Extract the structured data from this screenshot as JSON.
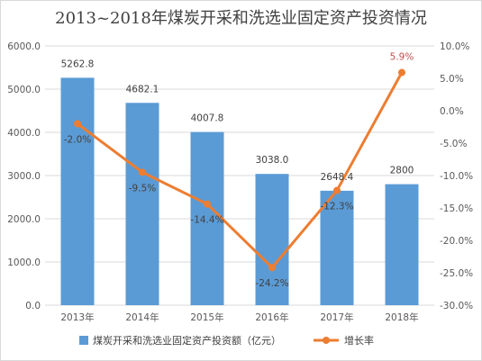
{
  "chart_data": {
    "type": "bar",
    "title": "2013~2018年煤炭开采和洗选业固定资产投资情况",
    "categories": [
      "2013年",
      "2014年",
      "2015年",
      "2016年",
      "2017年",
      "2018年"
    ],
    "series": [
      {
        "name": "煤炭开采和洗选业固定资产投资额（亿元）",
        "type": "bar",
        "axis": "left",
        "color": "#5b9bd5",
        "values": [
          5262.8,
          4682.1,
          4007.8,
          3038.0,
          2648.4,
          2800
        ],
        "labels": [
          "5262.8",
          "4682.1",
          "4007.8",
          "3038.0",
          "2648.4",
          "2800"
        ]
      },
      {
        "name": "增长率",
        "type": "line",
        "axis": "right",
        "color": "#ed7d31",
        "values": [
          -2.0,
          -9.5,
          -14.4,
          -24.2,
          -12.3,
          5.9
        ],
        "labels": [
          "-2.0%",
          "-9.5%",
          "-14.4%",
          "-24.2%",
          "-12.3%",
          "5.9%"
        ]
      }
    ],
    "y_left": {
      "ylim": [
        0,
        6000
      ],
      "ticks": [
        "0.0",
        "1000.0",
        "2000.0",
        "3000.0",
        "4000.0",
        "5000.0",
        "6000.0"
      ]
    },
    "y_right": {
      "ylim": [
        -30,
        10
      ],
      "ticks": [
        "-30.0%",
        "-25.0%",
        "-20.0%",
        "-15.0%",
        "-10.0%",
        "-5.0%",
        "0.0%",
        "5.0%",
        "10.0%"
      ]
    },
    "legend_position": "bottom",
    "grid": true
  }
}
